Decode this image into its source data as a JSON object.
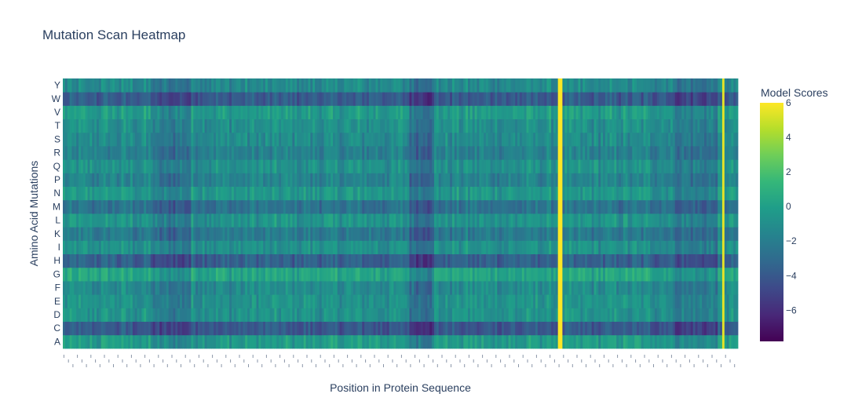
{
  "chart_data": {
    "type": "heatmap",
    "title": "Mutation Scan Heatmap",
    "xlabel": "Position in Protein Sequence",
    "ylabel": "Amino Acid Mutations",
    "y_categories": [
      "A",
      "C",
      "D",
      "E",
      "F",
      "G",
      "H",
      "I",
      "K",
      "L",
      "M",
      "N",
      "P",
      "Q",
      "R",
      "S",
      "T",
      "V",
      "W",
      "Y"
    ],
    "colorbar": {
      "title": "Model Scores",
      "range": [
        -7.8,
        6.0
      ],
      "ticks": [
        -6,
        -4,
        -2,
        0,
        2,
        4,
        6
      ],
      "colorscale": "Viridis"
    },
    "row_mean_scores": {
      "A": -0.3,
      "C": -4.0,
      "D": -0.8,
      "E": -0.8,
      "F": -1.2,
      "G": 0.3,
      "H": -3.6,
      "I": -0.9,
      "K": -2.2,
      "L": -0.7,
      "M": -2.6,
      "N": -0.5,
      "P": -1.6,
      "Q": -0.8,
      "R": -1.8,
      "S": -1.2,
      "T": -0.9,
      "V": -0.3,
      "W": -3.9,
      "Y": -1.3
    },
    "highlight_positions": [
      {
        "position_fraction": 0.735,
        "score": 6.0
      },
      {
        "position_fraction": 0.978,
        "score": 5.5
      }
    ],
    "num_positions": 300
  }
}
